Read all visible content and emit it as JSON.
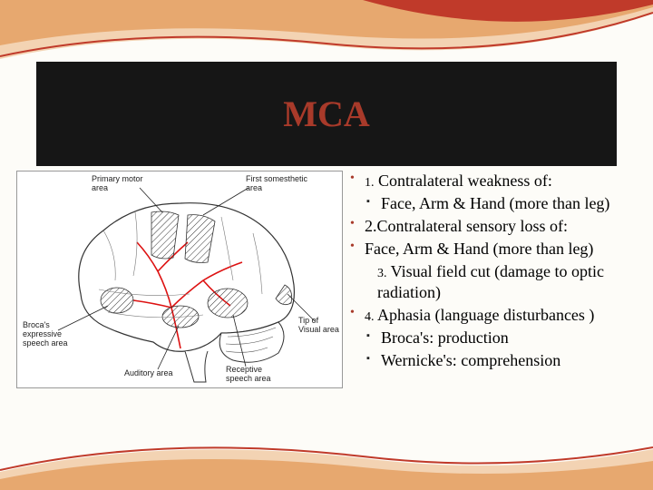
{
  "title": "MCA",
  "colors": {
    "title_color": "#a83a2a",
    "band_bg": "#161616",
    "swoosh_red": "#c03a2a",
    "swoosh_orange": "#e7a86f",
    "swoosh_orange_light": "#f3d3b3"
  },
  "diagram": {
    "labels": {
      "primary_motor": "Primary motor\narea",
      "first_somesthetic": "First somesthetic\narea",
      "brocas": "Broca's\nexpressive\nspeech area",
      "auditory": "Auditory area",
      "receptive": "Receptive\nspeech area",
      "visual": "Tip of\nVisual area"
    }
  },
  "bullets": {
    "b1_num": "1.",
    "b1_text": " Contralateral weakness of:",
    "b1_sub1": "Face, Arm & Hand (more than leg)",
    "b2": "2.Contralateral sensory loss of:",
    "b3": "Face, Arm & Hand (more than leg)",
    "b3_sub_num": "3.",
    "b3_sub_text": " Visual field cut (damage to optic radiation)",
    "b4_num": "4.",
    "b4_text": " Aphasia (language disturbances )",
    "b4_sub1": "Broca's: production",
    "b4_sub2": "Wernicke's: comprehension"
  }
}
